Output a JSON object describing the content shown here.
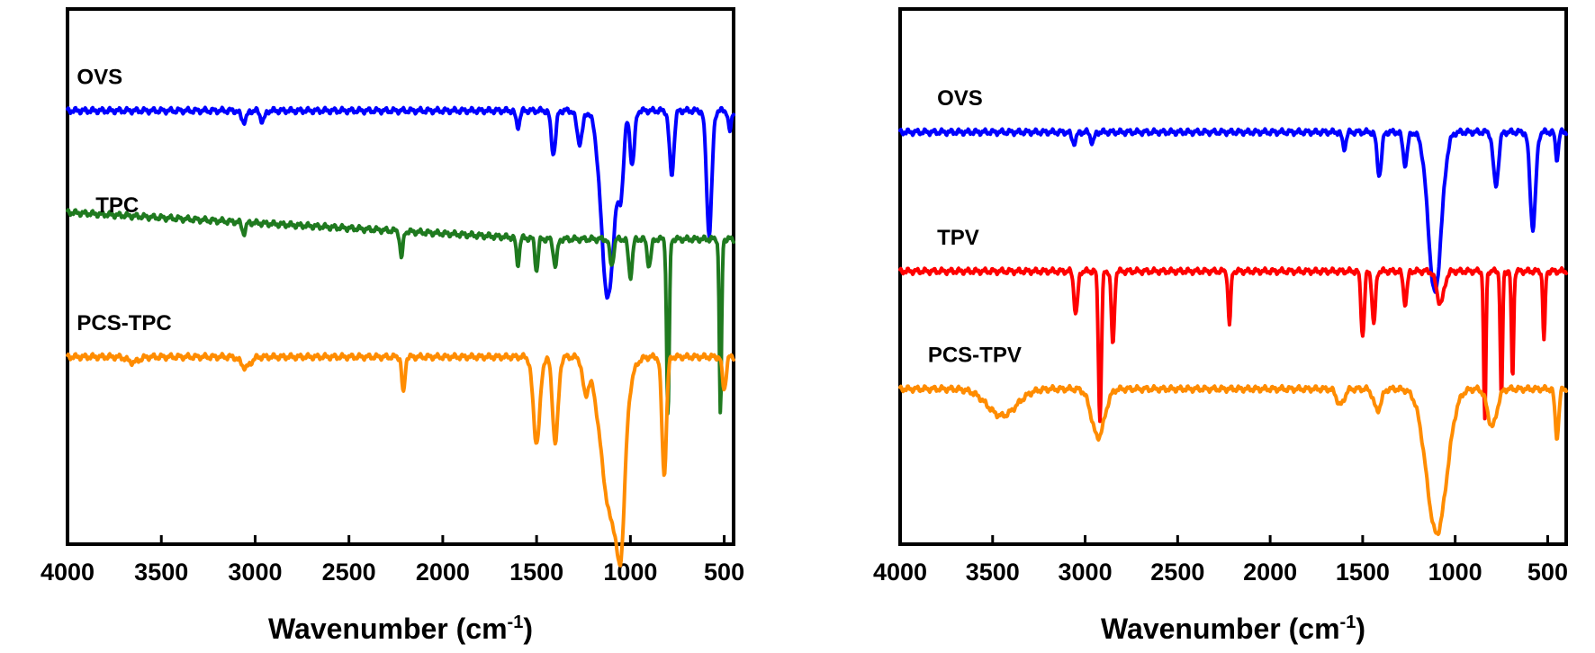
{
  "chart_data": [
    {
      "type": "line",
      "xlabel": "Wavenumber (cm",
      "xlabel_sup": "-1",
      "xlabel_close": ")",
      "xlim": [
        4000,
        450
      ],
      "x_reversed": true,
      "ticks": [
        {
          "value": 4000,
          "label": "4000"
        },
        {
          "value": 3500,
          "label": "3500"
        },
        {
          "value": 3000,
          "label": "3000"
        },
        {
          "value": 2500,
          "label": "2500"
        },
        {
          "value": 2000,
          "label": "2000"
        },
        {
          "value": 1500,
          "label": "1500"
        },
        {
          "value": 1000,
          "label": "1000"
        },
        {
          "value": 500,
          "label": "500"
        }
      ],
      "y_axis_shown": false,
      "ylim": [
        0,
        100
      ],
      "series": [
        {
          "name": "OVS",
          "color": "#0000ff",
          "baseline": 81,
          "x_start": 4000,
          "x_end": 450,
          "label_at": {
            "x": 3950,
            "y": 86
          },
          "peaks": [
            {
              "x": 3060,
              "depth": 2,
              "width": 15
            },
            {
              "x": 2960,
              "depth": 2,
              "width": 12
            },
            {
              "x": 1600,
              "depth": 3,
              "width": 10
            },
            {
              "x": 1410,
              "depth": 8,
              "width": 12
            },
            {
              "x": 1270,
              "depth": 6,
              "width": 15
            },
            {
              "x": 1120,
              "depth": 35,
              "width": 35
            },
            {
              "x": 1050,
              "depth": 12,
              "width": 15
            },
            {
              "x": 990,
              "depth": 10,
              "width": 12
            },
            {
              "x": 780,
              "depth": 12,
              "width": 12
            },
            {
              "x": 580,
              "depth": 23,
              "width": 14
            },
            {
              "x": 470,
              "depth": 4,
              "width": 8
            }
          ]
        },
        {
          "name": "TPC",
          "color": "#1f7a1f",
          "baseline": 57,
          "slope_start": 62,
          "x_start": 4000,
          "x_end": 450,
          "label_at": {
            "x": 3850,
            "y": 62
          },
          "peaks": [
            {
              "x": 3060,
              "depth": 2,
              "width": 10
            },
            {
              "x": 2220,
              "depth": 5,
              "width": 8
            },
            {
              "x": 1600,
              "depth": 5,
              "width": 8
            },
            {
              "x": 1500,
              "depth": 6,
              "width": 8
            },
            {
              "x": 1400,
              "depth": 5,
              "width": 10
            },
            {
              "x": 1100,
              "depth": 5,
              "width": 10
            },
            {
              "x": 1000,
              "depth": 7,
              "width": 10
            },
            {
              "x": 900,
              "depth": 5,
              "width": 10
            },
            {
              "x": 800,
              "depth": 33,
              "width": 7
            },
            {
              "x": 520,
              "depth": 33,
              "width": 6
            }
          ]
        },
        {
          "name": "PCS-TPC",
          "color": "#ff8c00",
          "baseline": 35,
          "x_start": 4000,
          "x_end": 450,
          "label_at": {
            "x": 3950,
            "y": 40
          },
          "peaks": [
            {
              "x": 3650,
              "depth": 1,
              "width": 30
            },
            {
              "x": 3050,
              "depth": 2,
              "width": 25
            },
            {
              "x": 2210,
              "depth": 7,
              "width": 8
            },
            {
              "x": 1500,
              "depth": 16,
              "width": 18
            },
            {
              "x": 1400,
              "depth": 16,
              "width": 15
            },
            {
              "x": 1240,
              "depth": 6,
              "width": 15
            },
            {
              "x": 1100,
              "depth": 30,
              "width": 55
            },
            {
              "x": 1050,
              "depth": 18,
              "width": 20
            },
            {
              "x": 820,
              "depth": 22,
              "width": 12
            },
            {
              "x": 500,
              "depth": 6,
              "width": 10
            }
          ]
        }
      ]
    },
    {
      "type": "line",
      "xlabel": "Wavenumber (cm",
      "xlabel_sup": "-1",
      "xlabel_close": ")",
      "xlim": [
        4000,
        400
      ],
      "x_reversed": true,
      "ticks": [
        {
          "value": 4000,
          "label": "4000"
        },
        {
          "value": 3500,
          "label": "3500"
        },
        {
          "value": 3000,
          "label": "3000"
        },
        {
          "value": 2500,
          "label": "2500"
        },
        {
          "value": 2000,
          "label": "2000"
        },
        {
          "value": 1500,
          "label": "1500"
        },
        {
          "value": 1000,
          "label": "1000"
        },
        {
          "value": 500,
          "label": "500"
        }
      ],
      "y_axis_shown": false,
      "ylim": [
        0,
        100
      ],
      "series": [
        {
          "name": "OVS",
          "color": "#0000ff",
          "baseline": 77,
          "x_start": 4000,
          "x_end": 400,
          "label_at": {
            "x": 3800,
            "y": 82
          },
          "peaks": [
            {
              "x": 3060,
              "depth": 2,
              "width": 12
            },
            {
              "x": 2960,
              "depth": 2,
              "width": 10
            },
            {
              "x": 1600,
              "depth": 3,
              "width": 10
            },
            {
              "x": 1410,
              "depth": 8,
              "width": 12
            },
            {
              "x": 1270,
              "depth": 6,
              "width": 12
            },
            {
              "x": 1110,
              "depth": 30,
              "width": 35
            },
            {
              "x": 780,
              "depth": 10,
              "width": 14
            },
            {
              "x": 580,
              "depth": 18,
              "width": 15
            },
            {
              "x": 450,
              "depth": 5,
              "width": 8
            }
          ]
        },
        {
          "name": "TPV",
          "color": "#ff0000",
          "baseline": 51,
          "x_start": 4000,
          "x_end": 400,
          "label_at": {
            "x": 3800,
            "y": 56
          },
          "peaks": [
            {
              "x": 3050,
              "depth": 8,
              "width": 10
            },
            {
              "x": 2920,
              "depth": 28,
              "width": 8
            },
            {
              "x": 2850,
              "depth": 14,
              "width": 8
            },
            {
              "x": 2220,
              "depth": 10,
              "width": 7
            },
            {
              "x": 1500,
              "depth": 12,
              "width": 9
            },
            {
              "x": 1440,
              "depth": 10,
              "width": 9
            },
            {
              "x": 1270,
              "depth": 6,
              "width": 10
            },
            {
              "x": 1080,
              "depth": 6,
              "width": 20
            },
            {
              "x": 840,
              "depth": 28,
              "width": 6
            },
            {
              "x": 750,
              "depth": 24,
              "width": 6
            },
            {
              "x": 690,
              "depth": 20,
              "width": 6
            },
            {
              "x": 520,
              "depth": 13,
              "width": 6
            }
          ]
        },
        {
          "name": "PCS-TPV",
          "color": "#ff8c00",
          "baseline": 29,
          "x_start": 4000,
          "x_end": 400,
          "label_at": {
            "x": 3850,
            "y": 34
          },
          "peaks": [
            {
              "x": 3450,
              "depth": 5,
              "width": 80
            },
            {
              "x": 2930,
              "depth": 9,
              "width": 35
            },
            {
              "x": 1620,
              "depth": 3,
              "width": 20
            },
            {
              "x": 1420,
              "depth": 4,
              "width": 20
            },
            {
              "x": 1100,
              "depth": 27,
              "width": 55
            },
            {
              "x": 800,
              "depth": 7,
              "width": 25
            },
            {
              "x": 450,
              "depth": 9,
              "width": 10
            }
          ]
        }
      ]
    }
  ]
}
